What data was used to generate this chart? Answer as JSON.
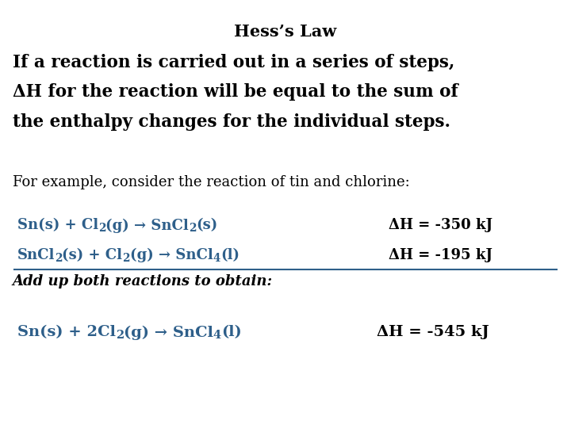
{
  "title": "Hess’s Law",
  "bg_color": "#ffffff",
  "text_color_black": "#000000",
  "text_color_blue": "#2e5f8a",
  "bold_line1": "If a reaction is carried out in a series of steps,",
  "bold_line2": "ΔH for the reaction will be equal to the sum of",
  "bold_line3": "the enthalpy changes for the individual steps.",
  "normal_line": "For example, consider the reaction of tin and chlorine:",
  "italic_line": "Add up both reactions to obtain:",
  "rxn1_dH": "ΔH = -350 kJ",
  "rxn2_dH": "ΔH = -195 kJ",
  "rxn3_dH": "ΔH = -545 kJ"
}
